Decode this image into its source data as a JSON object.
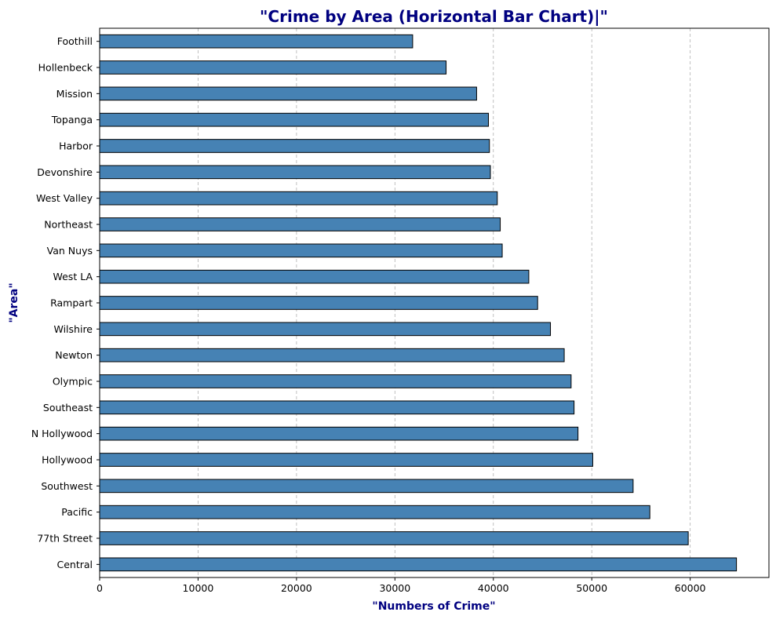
{
  "colors": {
    "bar_fill": "#4682B4",
    "bar_edge": "#000000",
    "title_color": "#000080",
    "grid_color": "#b0b0b0"
  },
  "chart_data": {
    "type": "bar",
    "orientation": "horizontal",
    "title": "\"Crime by Area (Horizontal Bar Chart)|\"",
    "xlabel": "\"Numbers of Crime\"",
    "ylabel": "\"Area\"",
    "categories": [
      "Central",
      "77th Street",
      "Pacific",
      "Southwest",
      "Hollywood",
      "N Hollywood",
      "Southeast",
      "Olympic",
      "Newton",
      "Wilshire",
      "Rampart",
      "West LA",
      "Van Nuys",
      "Northeast",
      "West Valley",
      "Devonshire",
      "Harbor",
      "Topanga",
      "Mission",
      "Hollenbeck",
      "Foothill"
    ],
    "values": [
      64700,
      59800,
      55900,
      54200,
      50100,
      48600,
      48200,
      47900,
      47200,
      45800,
      44500,
      43600,
      40900,
      40700,
      40400,
      39700,
      39600,
      39500,
      38300,
      35200,
      31800
    ],
    "xlim": [
      0,
      68000
    ],
    "xticks": [
      0,
      10000,
      20000,
      30000,
      40000,
      50000,
      60000
    ],
    "grid": "vertical dashed",
    "legend": "none"
  }
}
